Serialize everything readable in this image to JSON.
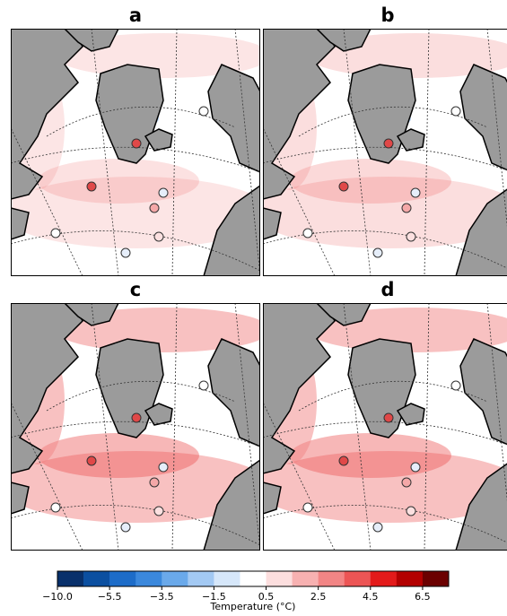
{
  "panels": [
    {
      "label": "a"
    },
    {
      "label": "b"
    },
    {
      "label": "c"
    },
    {
      "label": "d"
    }
  ],
  "colorbar": {
    "label": "Temperature (°C)",
    "bounds": [
      -10,
      -6.5,
      -5.5,
      -4.5,
      -3.5,
      -2.5,
      -1.5,
      -0.5,
      0.5,
      1.5,
      2.5,
      3.5,
      4.5,
      5.5,
      6.5,
      7.5
    ],
    "colors": [
      "#08306b",
      "#0b4fa0",
      "#1d6cc8",
      "#3b88dc",
      "#6aa9ea",
      "#a3c9f3",
      "#d6e7fa",
      "#ffffff",
      "#fcdede",
      "#f7b1b1",
      "#f28585",
      "#ec5555",
      "#e31a1a",
      "#b30000",
      "#6b0000"
    ],
    "ticks": [
      {
        "value": -10,
        "label": "−10.0"
      },
      {
        "value": -5.5,
        "label": "−5.5"
      },
      {
        "value": -3.5,
        "label": "−3.5"
      },
      {
        "value": -1.5,
        "label": "−1.5"
      },
      0.5,
      2.5,
      4.5,
      6.5
    ]
  }
}
